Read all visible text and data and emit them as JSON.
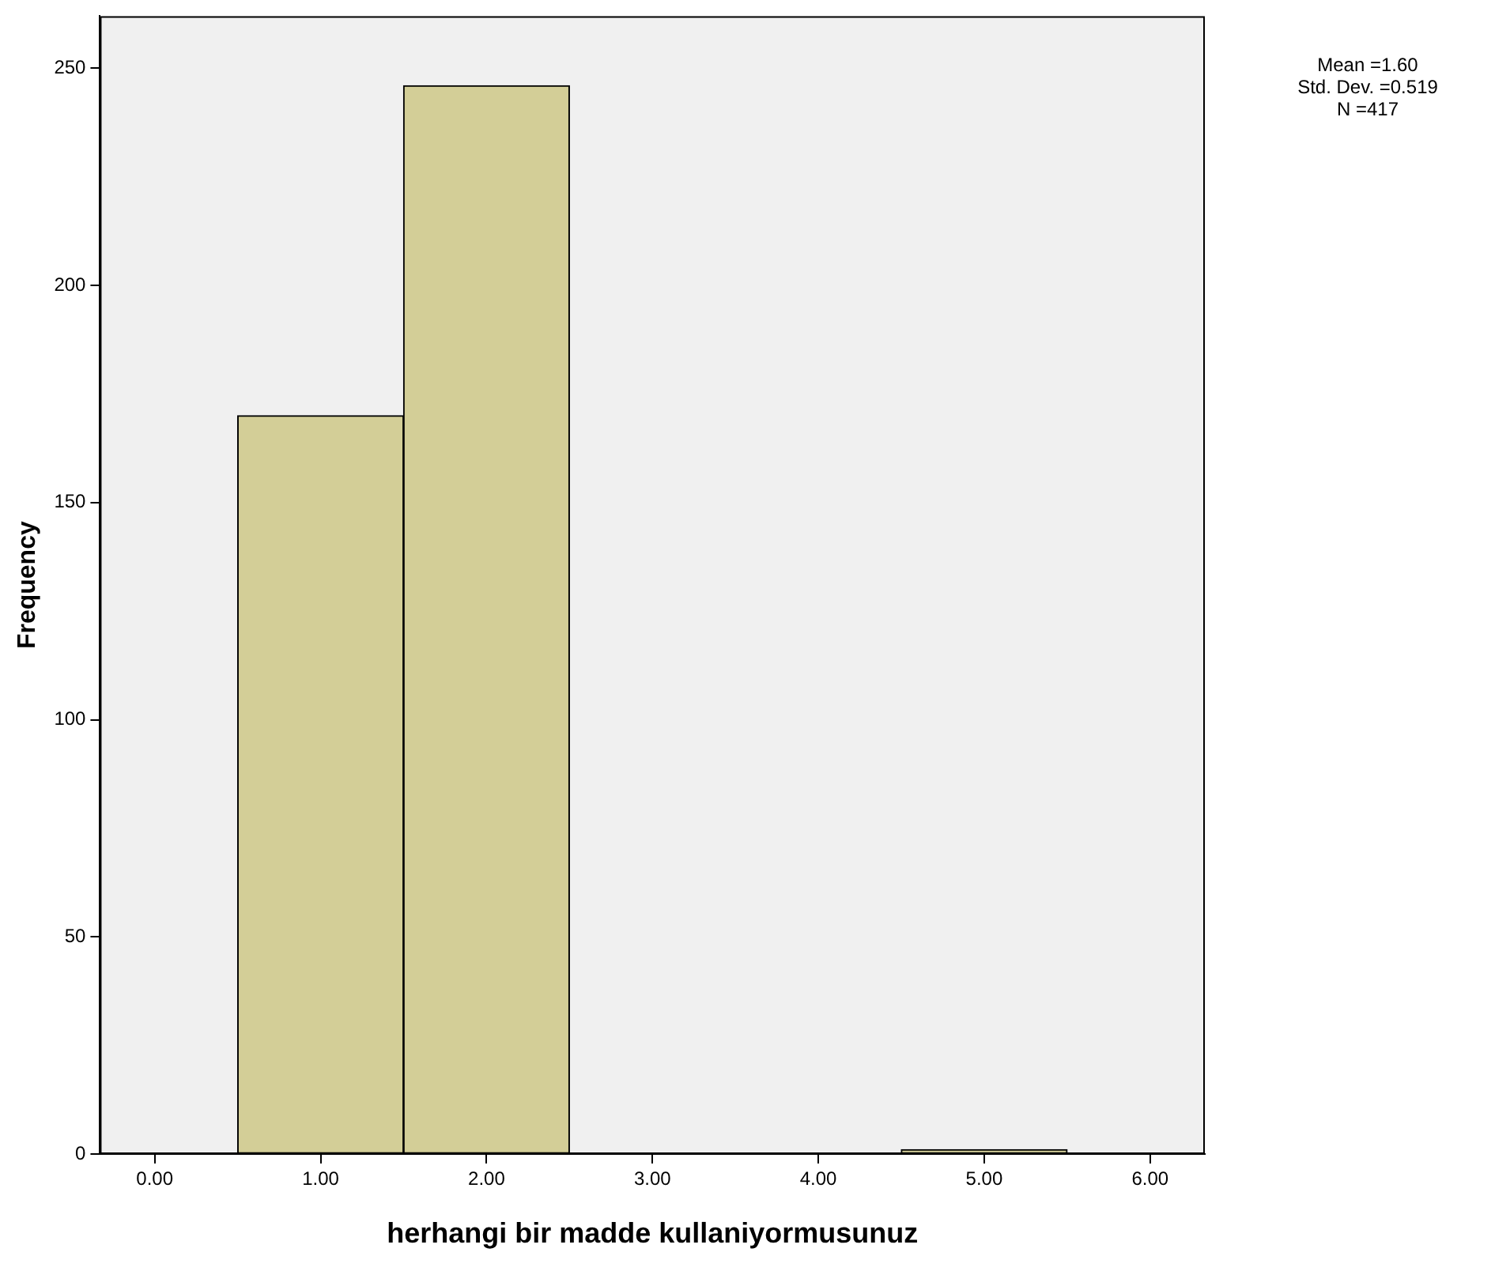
{
  "chart_data": {
    "type": "histogram",
    "xlabel": "herhangi bir madde kullaniyormusunuz",
    "ylabel": "Frequency",
    "bins": [
      0.5,
      1.5,
      2.5,
      3.5,
      4.5,
      5.5
    ],
    "values": [
      170,
      246,
      0,
      0,
      1
    ],
    "color": "#d3ce97",
    "xlim": [
      -0.33,
      6.33
    ],
    "xticks": [
      {
        "value": 0,
        "label": "0.00"
      },
      {
        "value": 1,
        "label": "1.00"
      },
      {
        "value": 2,
        "label": "2.00"
      },
      {
        "value": 3,
        "label": "3.00"
      },
      {
        "value": 4,
        "label": "4.00"
      },
      {
        "value": 5,
        "label": "5.00"
      },
      {
        "value": 6,
        "label": "6.00"
      }
    ],
    "ylim": [
      0,
      262
    ],
    "yticks": [
      0,
      50,
      100,
      150,
      200,
      250
    ],
    "grid": false,
    "legend": false,
    "annotations": [
      "Mean =1.60",
      "Std. Dev. =0.519",
      "N =417"
    ]
  }
}
